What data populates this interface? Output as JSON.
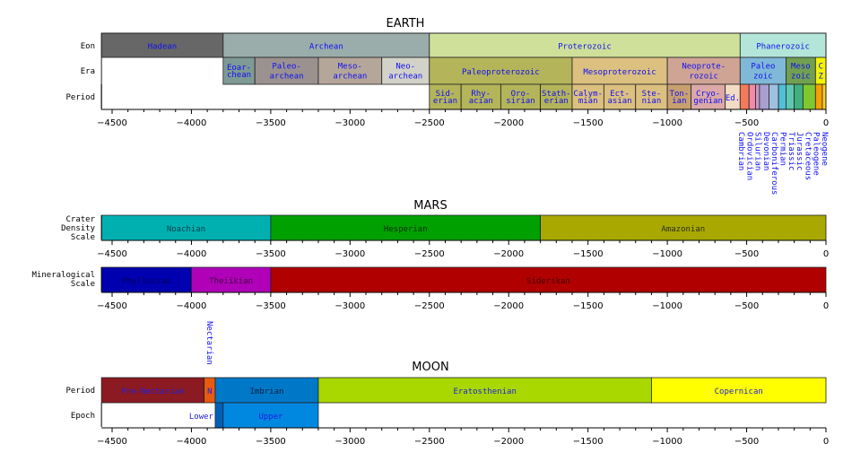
{
  "axis": {
    "min": -4567,
    "max": 0,
    "ticks": [
      -4500,
      -4000,
      -3500,
      -3000,
      -2500,
      -2000,
      -1500,
      -1000,
      -500,
      0
    ]
  },
  "earth": {
    "title": "EARTH",
    "rows": {
      "eon": "Eon",
      "era": "Era",
      "period": "Period"
    },
    "eons": [
      {
        "label": "Hadean",
        "start": -4567,
        "end": -3800,
        "color": "#676767"
      },
      {
        "label": "Archean",
        "start": -3800,
        "end": -2500,
        "color": "#9aadab"
      },
      {
        "label": "Proterozoic",
        "start": -2500,
        "end": -541,
        "color": "#cfe09a"
      },
      {
        "label": "Phanerozoic",
        "start": -541,
        "end": 0,
        "color": "#b3e6d9"
      }
    ],
    "eras": [
      {
        "label": "Eoar-\nchean",
        "start": -3800,
        "end": -3600,
        "color": "#7f9a95",
        "small": true
      },
      {
        "label": "Paleo-\narchean",
        "start": -3600,
        "end": -3200,
        "color": "#9b9290"
      },
      {
        "label": "Meso-\narchean",
        "start": -3200,
        "end": -2800,
        "color": "#b5a69a"
      },
      {
        "label": "Neo-\narchean",
        "start": -2800,
        "end": -2500,
        "color": "#d3d2c8"
      },
      {
        "label": "Paleoproterozoic",
        "start": -2500,
        "end": -1600,
        "color": "#b4b45a"
      },
      {
        "label": "Mesoproterozoic",
        "start": -1600,
        "end": -1000,
        "color": "#dcc080"
      },
      {
        "label": "Neoprote-\nrozoic",
        "start": -1000,
        "end": -541,
        "color": "#d0a494"
      },
      {
        "label": "Paleo\nzoic",
        "start": -541,
        "end": -252,
        "color": "#80b8d8"
      },
      {
        "label": "Meso\nzoic",
        "start": -252,
        "end": -66,
        "color": "#70a050"
      },
      {
        "label": "C\nZ",
        "start": -66,
        "end": 0,
        "color": "#f4f400"
      }
    ],
    "periods": [
      {
        "label": "Sid-\nerian",
        "start": -2500,
        "end": -2300,
        "color": "#b4b45a"
      },
      {
        "label": "Rhy-\nacian",
        "start": -2300,
        "end": -2050,
        "color": "#b4b45a"
      },
      {
        "label": "Oro-\nsirian",
        "start": -2050,
        "end": -1800,
        "color": "#b4b45a"
      },
      {
        "label": "Stath-\nerian",
        "start": -1800,
        "end": -1600,
        "color": "#b4b45a"
      },
      {
        "label": "Calym-\nmian",
        "start": -1600,
        "end": -1400,
        "color": "#dcc080"
      },
      {
        "label": "Ect-\nasian",
        "start": -1400,
        "end": -1200,
        "color": "#dcc080"
      },
      {
        "label": "Ste-\nnian",
        "start": -1200,
        "end": -1000,
        "color": "#dcc080"
      },
      {
        "label": "Ton-\nian",
        "start": -1000,
        "end": -850,
        "color": "#c8a070"
      },
      {
        "label": "Cryo-\ngenian",
        "start": -850,
        "end": -635,
        "color": "#dca8a8"
      },
      {
        "label": "Ed.",
        "start": -635,
        "end": -541,
        "color": "#f2dcc4"
      },
      {
        "label": "Cambrian",
        "start": -541,
        "end": -485,
        "color": "#f37b5a",
        "vertical": true
      },
      {
        "label": "Ordovician",
        "start": -485,
        "end": -444,
        "color": "#f08aa8",
        "vertical": true
      },
      {
        "label": "Silurian",
        "start": -444,
        "end": -419,
        "color": "#c898c0",
        "vertical": true
      },
      {
        "label": "Devonian",
        "start": -419,
        "end": -359,
        "color": "#a8a0d0",
        "vertical": true
      },
      {
        "label": "Carboniferous",
        "start": -359,
        "end": -299,
        "color": "#a0c0e0",
        "vertical": true
      },
      {
        "label": "Permian",
        "start": -299,
        "end": -252,
        "color": "#50c0d8",
        "vertical": true
      },
      {
        "label": "Triassic",
        "start": -252,
        "end": -201,
        "color": "#60c8b0",
        "vertical": true
      },
      {
        "label": "Jurassic",
        "start": -201,
        "end": -145,
        "color": "#40b080",
        "vertical": true
      },
      {
        "label": "Cretaceous",
        "start": -145,
        "end": -66,
        "color": "#80c830",
        "vertical": true
      },
      {
        "label": "Paleogene",
        "start": -66,
        "end": -23,
        "color": "#f8a000",
        "vertical": true
      },
      {
        "label": "Neogene",
        "start": -23,
        "end": 0,
        "color": "#f8d020",
        "vertical": true
      }
    ]
  },
  "mars": {
    "title": "MARS",
    "crater_label": "Crater\nDensity\nScale",
    "mineral_label": "Mineralogical\nScale",
    "crater": [
      {
        "label": "Noachian",
        "start": -4567,
        "end": -3500,
        "color": "#00b0b0",
        "text": "#004050"
      },
      {
        "label": "Hesperian",
        "start": -3500,
        "end": -1800,
        "color": "#00a000",
        "text": "#003000"
      },
      {
        "label": "Amazonian",
        "start": -1800,
        "end": 0,
        "color": "#a8a800",
        "text": "#303000"
      }
    ],
    "mineral": [
      {
        "label": "Phyllocian",
        "start": -4567,
        "end": -4000,
        "color": "#0000b0",
        "text": "#000050"
      },
      {
        "label": "Theiikian",
        "start": -4000,
        "end": -3500,
        "color": "#b000b8",
        "text": "#400040"
      },
      {
        "label": "Siderikan",
        "start": -3500,
        "end": 0,
        "color": "#b00000",
        "text": "#400000"
      }
    ]
  },
  "moon": {
    "title": "MOON",
    "rows": {
      "period": "Period",
      "epoch": "Epoch"
    },
    "nectarian_label": "Nectarian",
    "periods": [
      {
        "label": "Pre-Nectarian",
        "start": -4567,
        "end": -3920,
        "color": "#8b1a22",
        "text": "#2020e0"
      },
      {
        "label": "N",
        "start": -3920,
        "end": -3850,
        "color": "#e85a10",
        "text": "#2020e0"
      },
      {
        "label": "Imbrian",
        "start": -3850,
        "end": -3200,
        "color": "#0078c8",
        "text": "#102040"
      },
      {
        "label": "Eratosthenian",
        "start": -3200,
        "end": -1100,
        "color": "#a8d800",
        "text": "#2020e0"
      },
      {
        "label": "Copernican",
        "start": -1100,
        "end": 0,
        "color": "#ffff00",
        "text": "#2020e0"
      }
    ],
    "epochs": [
      {
        "label": "Lower",
        "start": -3850,
        "end": -3800,
        "color": "#0060b8",
        "text": "#2020e0",
        "outside": true
      },
      {
        "label": "Upper",
        "start": -3800,
        "end": -3200,
        "color": "#0088e0",
        "text": "#2020e0"
      }
    ]
  }
}
